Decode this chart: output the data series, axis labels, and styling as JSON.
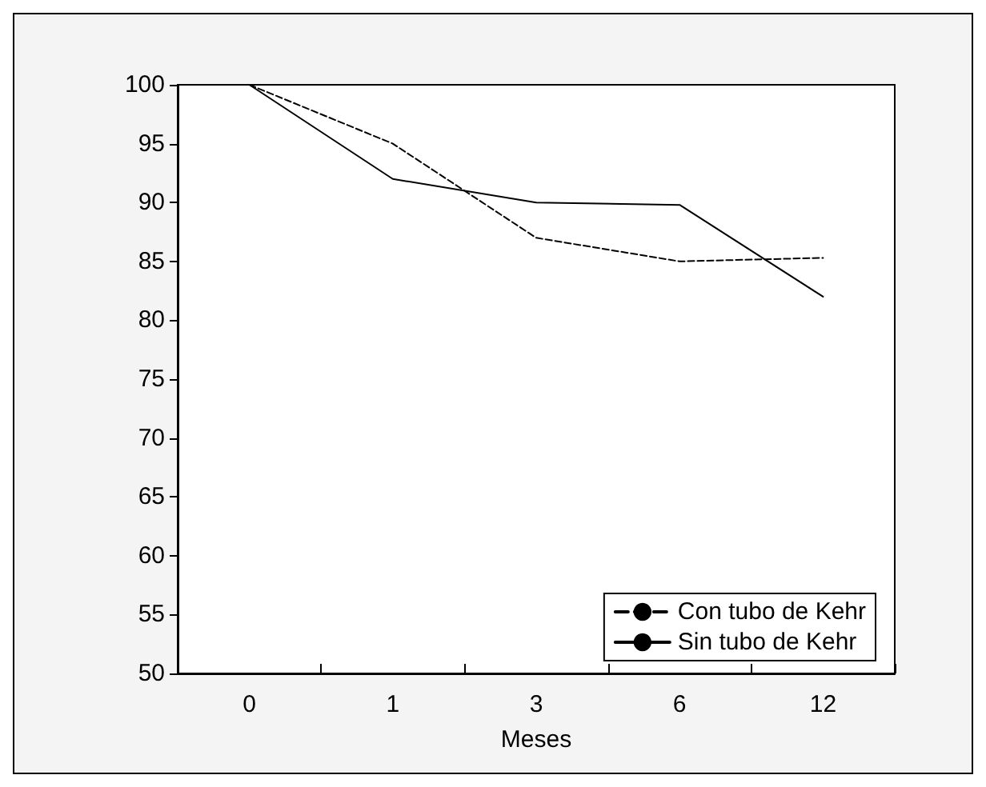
{
  "chart_data": {
    "type": "line",
    "xlabel": "Meses",
    "categories": [
      "0",
      "1",
      "3",
      "6",
      "12"
    ],
    "series": [
      {
        "name": "Con tubo de Kehr",
        "color": "#000000",
        "line_style": "dashed",
        "values": [
          100,
          95,
          87,
          85,
          85.3
        ]
      },
      {
        "name": "Sin tubo de Kehr",
        "color": "#000000",
        "line_style": "solid",
        "values": [
          100,
          92,
          90,
          89.8,
          82
        ]
      }
    ],
    "ylim": [
      50,
      100
    ],
    "yticks": [
      50,
      55,
      60,
      65,
      70,
      75,
      80,
      85,
      90,
      95,
      100
    ],
    "grid": false,
    "legend": "bottom right",
    "marker": "none"
  }
}
